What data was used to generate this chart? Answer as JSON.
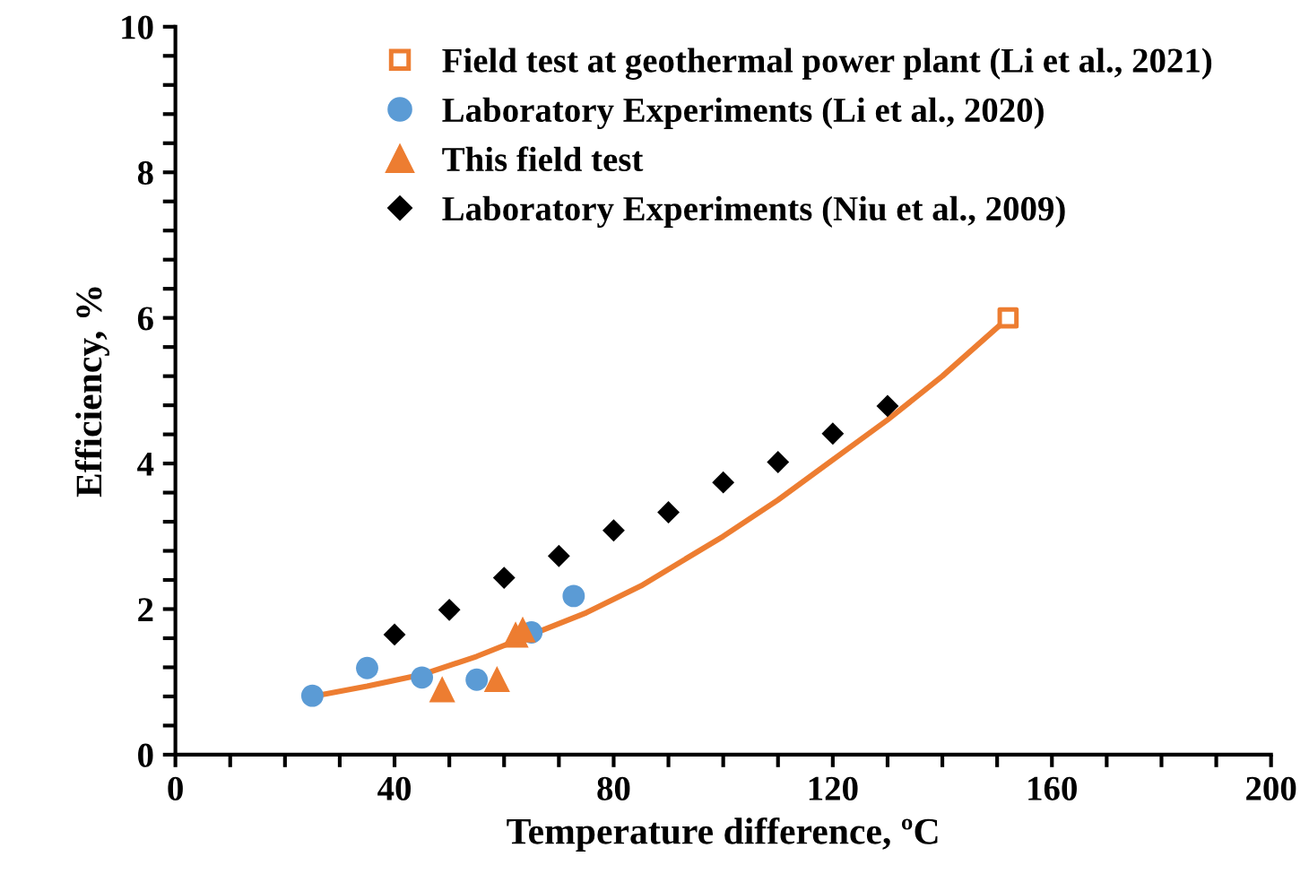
{
  "chart_data": {
    "type": "scatter",
    "xlabel": "Temperature difference, ºC",
    "ylabel": "Efficiency, %",
    "xlim": [
      0,
      200
    ],
    "ylim": [
      0,
      10
    ],
    "xticks": [
      0,
      {
        "value": 10,
        "label": null
      },
      {
        "value": 20,
        "label": null
      },
      {
        "value": 30,
        "label": null
      },
      40,
      {
        "value": 50,
        "label": null
      },
      {
        "value": 60,
        "label": null
      },
      {
        "value": 70,
        "label": null
      },
      80,
      {
        "value": 90,
        "label": null
      },
      {
        "value": 100,
        "label": null
      },
      {
        "value": 110,
        "label": null
      },
      120,
      {
        "value": 130,
        "label": null
      },
      {
        "value": 140,
        "label": null
      },
      {
        "value": 150,
        "label": null
      },
      160,
      {
        "value": 170,
        "label": null
      },
      {
        "value": 180,
        "label": null
      },
      {
        "value": 190,
        "label": null
      },
      200
    ],
    "yticks": [
      0,
      {
        "value": 0.4,
        "label": null
      },
      {
        "value": 0.8,
        "label": null
      },
      {
        "value": 1.2,
        "label": null
      },
      {
        "value": 1.6,
        "label": null
      },
      2,
      {
        "value": 2.4,
        "label": null
      },
      {
        "value": 2.8,
        "label": null
      },
      {
        "value": 3.2,
        "label": null
      },
      {
        "value": 3.6,
        "label": null
      },
      4,
      {
        "value": 4.4,
        "label": null
      },
      {
        "value": 4.8,
        "label": null
      },
      {
        "value": 5.2,
        "label": null
      },
      {
        "value": 5.6,
        "label": null
      },
      6,
      {
        "value": 6.4,
        "label": null
      },
      {
        "value": 6.8,
        "label": null
      },
      {
        "value": 7.2,
        "label": null
      },
      {
        "value": 7.6,
        "label": null
      },
      8,
      {
        "value": 8.4,
        "label": null
      },
      {
        "value": 8.8,
        "label": null
      },
      {
        "value": 9.2,
        "label": null
      },
      {
        "value": 9.6,
        "label": null
      },
      10
    ],
    "grid": false,
    "legend": "top",
    "series": [
      {
        "type": "line",
        "color": "#ed7d31",
        "marker": "none",
        "line_style": "solid",
        "x": [
          25,
          35,
          45,
          55,
          65,
          75,
          85,
          100,
          110,
          120,
          130,
          140,
          152
        ],
        "values": [
          0.8,
          0.94,
          1.1,
          1.35,
          1.65,
          1.95,
          2.32,
          3.0,
          3.5,
          4.05,
          4.6,
          5.2,
          6.0
        ]
      },
      {
        "name": "Field test at geothermal power plant (Li et al., 2021)",
        "color": "#ed7d31",
        "marker": "square",
        "x": [
          152
        ],
        "values": [
          6.0
        ]
      },
      {
        "name": "Laboratory Experiments (Li et al., 2020)",
        "color": "#5b9bd5",
        "marker": "circle",
        "x": [
          25,
          35,
          45,
          55,
          65,
          72.7
        ],
        "values": [
          0.81,
          1.19,
          1.06,
          1.03,
          1.68,
          2.18
        ]
      },
      {
        "name": "This field test",
        "color": "#ed7d31",
        "marker": "triangle",
        "x": [
          48.7,
          58.7,
          62.1,
          63.4
        ],
        "values": [
          0.9,
          1.04,
          1.65,
          1.72
        ]
      },
      {
        "name": "Laboratory Experiments (Niu et al., 2009)",
        "color": "#000000",
        "marker": "diamond",
        "x": [
          40,
          50,
          60,
          70,
          80,
          90,
          100,
          110,
          120,
          130
        ],
        "values": [
          1.65,
          1.99,
          2.43,
          2.73,
          3.08,
          3.33,
          3.74,
          4.02,
          4.41,
          4.79
        ]
      }
    ]
  }
}
